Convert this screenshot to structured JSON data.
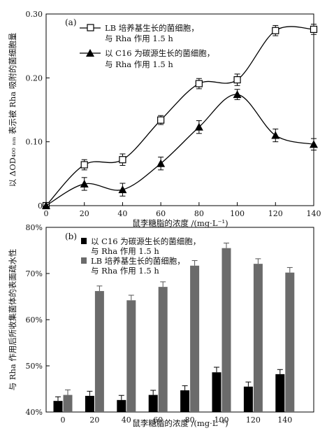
{
  "chart_data": [
    {
      "type": "line",
      "panel_label": "(a)",
      "xlabel": "鼠李糖脂的浓度 /(mg·L⁻¹)",
      "ylabel": "以 ΔOD₄₀₀ ₙₘ 表示被 Rha 吸附的菌细胞量",
      "x": [
        0,
        20,
        40,
        60,
        80,
        100,
        120,
        140
      ],
      "xlim": [
        0,
        140
      ],
      "ylim": [
        0,
        0.3
      ],
      "yticks": [
        "0",
        "0.10",
        "0.20",
        "0.30"
      ],
      "xticks": [
        "0",
        "20",
        "40",
        "60",
        "80",
        "100",
        "120",
        "140"
      ],
      "legend_position": "top-left",
      "series": [
        {
          "name_line1": "LB 培养基生长的菌细胞，",
          "name_line2": "与 Rha 作用 1.5 h",
          "marker": "open-square",
          "values": [
            0.0,
            0.064,
            0.072,
            0.134,
            0.191,
            0.197,
            0.274,
            0.276
          ],
          "errors": [
            0.004,
            0.008,
            0.009,
            0.007,
            0.008,
            0.009,
            0.008,
            0.008
          ]
        },
        {
          "name_line1": "以 C16 为碳源生长的菌细胞，",
          "name_line2": "与 Rha 作用 1.5 h",
          "marker": "filled-triangle",
          "values": [
            0.0,
            0.034,
            0.025,
            0.066,
            0.123,
            0.174,
            0.11,
            0.096
          ],
          "errors": [
            0.004,
            0.01,
            0.01,
            0.01,
            0.01,
            0.008,
            0.01,
            0.009
          ]
        }
      ]
    },
    {
      "type": "bar",
      "panel_label": "(b)",
      "xlabel": "鼠李糖脂的浓度 /(mg·L⁻¹)",
      "ylabel": "与 Rha 作用后所收集菌体的表面疏水性",
      "categories": [
        "0",
        "20",
        "40",
        "60",
        "80",
        "100",
        "120",
        "140"
      ],
      "ylim": [
        0.4,
        0.8
      ],
      "yticks": [
        "40%",
        "50%",
        "60%",
        "70%",
        "80%"
      ],
      "legend_position": "top-left",
      "series": [
        {
          "name_line1": "以 C16 为碳源生长的菌细胞，",
          "name_line2": "与 Rha 作用 1.5 h",
          "color": "#000000",
          "values": [
            0.424,
            0.435,
            0.426,
            0.437,
            0.447,
            0.486,
            0.455,
            0.482
          ],
          "errors": [
            0.009,
            0.01,
            0.01,
            0.01,
            0.01,
            0.011,
            0.01,
            0.01
          ]
        },
        {
          "name_line1": "LB 培养基生长的菌细胞，",
          "name_line2": "与 Rha 作用 1.5 h",
          "color": "#6b6b6b",
          "values": [
            0.437,
            0.662,
            0.642,
            0.671,
            0.717,
            0.755,
            0.721,
            0.702
          ],
          "errors": [
            0.011,
            0.011,
            0.011,
            0.011,
            0.011,
            0.011,
            0.011,
            0.011
          ]
        }
      ]
    }
  ]
}
